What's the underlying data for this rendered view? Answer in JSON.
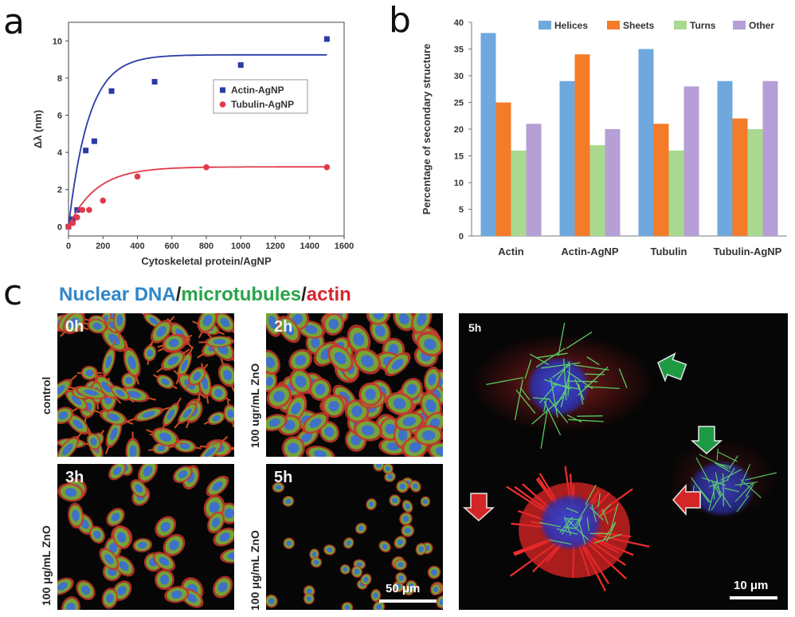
{
  "panels": {
    "a": "a",
    "b": "b",
    "c": "c"
  },
  "chart_data": [
    {
      "type": "scatter",
      "xlabel": "Cytoskeletal protein/AgNP",
      "ylabel": "Δλ (nm)",
      "xlim": [
        0,
        1600
      ],
      "ylim": [
        -0.5,
        11
      ],
      "xticks": [
        0,
        200,
        400,
        600,
        800,
        1000,
        1200,
        1400,
        1600
      ],
      "yticks": [
        0,
        2,
        4,
        6,
        8,
        10
      ],
      "legend_position": "middle-right",
      "series": [
        {
          "name": "Actin-AgNP",
          "color": "#2b3aa8",
          "marker": "square",
          "x": [
            0,
            25,
            50,
            100,
            150,
            250,
            500,
            1000,
            1500
          ],
          "y": [
            0,
            0.4,
            0.9,
            4.1,
            4.6,
            7.3,
            7.8,
            8.7,
            10.1
          ],
          "fit": {
            "ymax": 9.25,
            "k": 0.0085
          }
        },
        {
          "name": "Tubulin-AgNP",
          "color": "#e23a4a",
          "marker": "circle",
          "x": [
            0,
            25,
            50,
            80,
            120,
            200,
            400,
            800,
            1500
          ],
          "y": [
            0,
            0.2,
            0.5,
            0.9,
            0.9,
            1.4,
            2.7,
            3.2,
            3.2
          ],
          "fit": {
            "ymax": 3.22,
            "k": 0.0062
          }
        }
      ]
    },
    {
      "type": "bar",
      "title": "",
      "xlabel": "",
      "ylabel": "Percentage of secondary structure",
      "ylim": [
        0,
        40
      ],
      "yticks": [
        0,
        5,
        10,
        15,
        20,
        25,
        30,
        35,
        40
      ],
      "categories": [
        "Actin",
        "Actin-AgNP",
        "Tubulin",
        "Tubulin-AgNP"
      ],
      "legend_position": "top",
      "series": [
        {
          "name": "Helices",
          "color": "#6fa8dc",
          "values": [
            38,
            29,
            35,
            29
          ]
        },
        {
          "name": "Sheets",
          "color": "#f47b28",
          "values": [
            25,
            34,
            21,
            22
          ]
        },
        {
          "name": "Turns",
          "color": "#a9d98f",
          "values": [
            16,
            17,
            16,
            20
          ]
        },
        {
          "name": "Other",
          "color": "#b59fd6",
          "values": [
            21,
            20,
            28,
            29
          ]
        }
      ]
    }
  ],
  "stain": {
    "dna": "Nuclear DNA",
    "sep1": "/",
    "mt": "microtubules",
    "sep2": "/",
    "actin": "actin",
    "dna_color": "#2f86c9",
    "mt_color": "#2aa34a",
    "actin_color": "#d8262e",
    "sep_color": "#222222"
  },
  "micro": {
    "time_0h": "0h",
    "time_2h": "2h",
    "time_3h": "3h",
    "time_5h": "5h",
    "time_5h_zoom": "5h",
    "label_control": "control",
    "label_100ugr": "100 ugr/mL ZnO",
    "label_100ug_left": "100 μg/mL ZnO",
    "label_100ug_mid": "100 μg/mL ZnO",
    "scale_small": "50 μm",
    "scale_large": "10 μm"
  }
}
